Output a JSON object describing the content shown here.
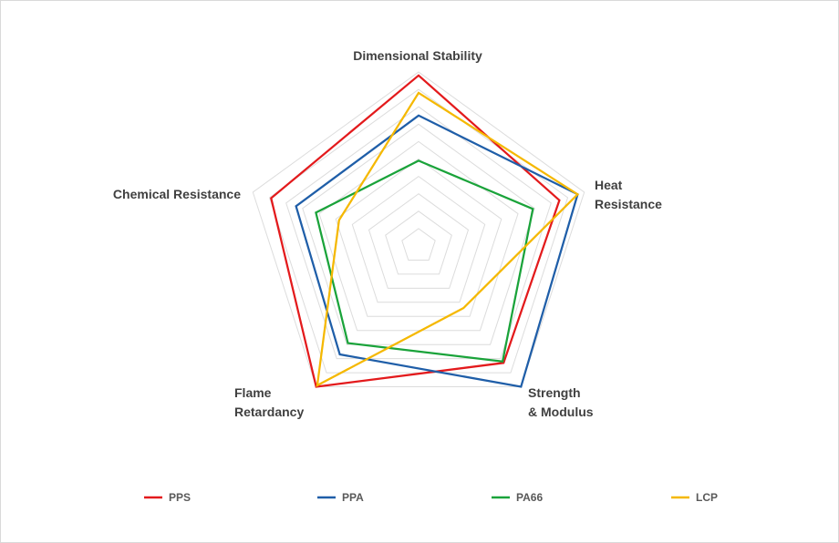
{
  "chart_data": {
    "type": "radar",
    "axes": [
      {
        "lines": [
          "Dimensional Stability"
        ]
      },
      {
        "lines": [
          "Heat",
          "Resistance"
        ]
      },
      {
        "lines": [
          "Strength",
          "& Modulus"
        ]
      },
      {
        "lines": [
          "Flame",
          "Retardancy"
        ]
      },
      {
        "lines": [
          "Chemical Resistance"
        ]
      }
    ],
    "scale": {
      "min": 0,
      "max": 10,
      "rings": 10
    },
    "grid": true,
    "legend_position": "bottom",
    "series": [
      {
        "name": "PPS",
        "color": "#e31a1c",
        "values": [
          9.8,
          8.5,
          8.3,
          10.0,
          8.9
        ]
      },
      {
        "name": "PPA",
        "color": "#1f5ea8",
        "values": [
          7.5,
          9.6,
          10.0,
          7.7,
          7.4
        ]
      },
      {
        "name": "PA66",
        "color": "#1aa33a",
        "values": [
          4.9,
          6.9,
          8.2,
          6.9,
          6.2
        ]
      },
      {
        "name": "LCP",
        "color": "#f5b800",
        "values": [
          8.8,
          9.6,
          4.4,
          9.9,
          4.8
        ]
      }
    ]
  }
}
